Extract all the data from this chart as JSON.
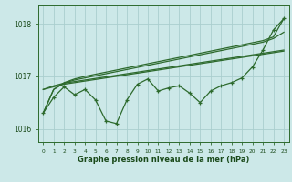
{
  "x": [
    0,
    1,
    2,
    3,
    4,
    5,
    6,
    7,
    8,
    9,
    10,
    11,
    12,
    13,
    14,
    15,
    16,
    17,
    18,
    19,
    20,
    21,
    22,
    23
  ],
  "line_main": [
    1016.3,
    1016.6,
    1016.8,
    1016.65,
    1016.75,
    1016.55,
    1016.15,
    1016.1,
    1016.55,
    1016.85,
    1016.95,
    1016.72,
    1016.78,
    1016.82,
    1016.68,
    1016.5,
    1016.72,
    1016.82,
    1016.88,
    1016.97,
    1017.18,
    1017.5,
    1017.88,
    1018.1
  ],
  "line_smooth1": [
    1016.3,
    1016.75,
    1016.88,
    1016.95,
    1017.0,
    1017.04,
    1017.08,
    1017.12,
    1017.16,
    1017.2,
    1017.24,
    1017.28,
    1017.32,
    1017.36,
    1017.4,
    1017.44,
    1017.48,
    1017.52,
    1017.56,
    1017.6,
    1017.64,
    1017.68,
    1017.75,
    1018.1
  ],
  "line_smooth2": [
    1016.3,
    1016.75,
    1016.87,
    1016.93,
    1016.97,
    1017.01,
    1017.05,
    1017.09,
    1017.13,
    1017.17,
    1017.21,
    1017.25,
    1017.29,
    1017.33,
    1017.37,
    1017.41,
    1017.45,
    1017.49,
    1017.53,
    1017.57,
    1017.61,
    1017.65,
    1017.72,
    1017.84
  ],
  "line_smooth3": [
    1016.75,
    1016.82,
    1016.87,
    1016.9,
    1016.93,
    1016.96,
    1016.99,
    1017.02,
    1017.05,
    1017.08,
    1017.11,
    1017.14,
    1017.17,
    1017.2,
    1017.23,
    1017.26,
    1017.29,
    1017.32,
    1017.35,
    1017.38,
    1017.41,
    1017.44,
    1017.47,
    1017.5
  ],
  "line_smooth4": [
    1016.75,
    1016.8,
    1016.85,
    1016.88,
    1016.91,
    1016.94,
    1016.97,
    1017.0,
    1017.03,
    1017.06,
    1017.09,
    1017.12,
    1017.15,
    1017.18,
    1017.21,
    1017.24,
    1017.27,
    1017.3,
    1017.33,
    1017.36,
    1017.39,
    1017.42,
    1017.45,
    1017.48
  ],
  "ylim": [
    1015.75,
    1018.35
  ],
  "yticks": [
    1016,
    1017,
    1018
  ],
  "xlabel": "Graphe pression niveau de la mer (hPa)",
  "bg_color": "#cce8e8",
  "line_color": "#2d6a2d",
  "grid_color": "#aacece",
  "label_color": "#1a4a1a"
}
